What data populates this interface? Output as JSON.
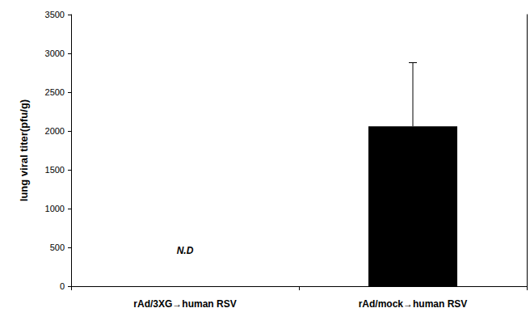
{
  "chart_data": {
    "type": "bar",
    "categories": [
      "rAd/3XG→human RSV",
      "rAd/mock→human RSV"
    ],
    "values": [
      null,
      2060
    ],
    "errors": [
      null,
      820
    ],
    "color": "#000000",
    "y_label": "lung viral titer(pfu/g)",
    "ylim": [
      0,
      3500
    ],
    "yticks": [
      0,
      500,
      1000,
      1500,
      2000,
      2500,
      3000,
      3500
    ],
    "grid": false,
    "annotations": [
      {
        "category": "rAd/3XG→human RSV",
        "text": "N.D"
      }
    ]
  }
}
